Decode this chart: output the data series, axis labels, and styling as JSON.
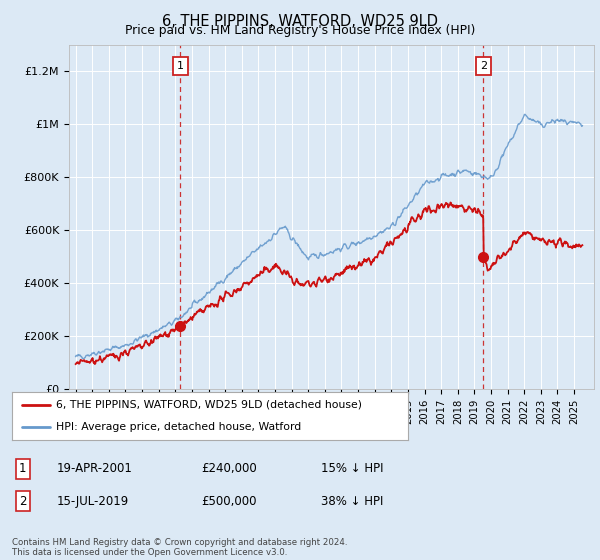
{
  "title": "6, THE PIPPINS, WATFORD, WD25 9LD",
  "subtitle": "Price paid vs. HM Land Registry's House Price Index (HPI)",
  "background_color": "#dce9f5",
  "plot_bg_color": "#dce9f5",
  "legend_line1": "6, THE PIPPINS, WATFORD, WD25 9LD (detached house)",
  "legend_line2": "HPI: Average price, detached house, Watford",
  "annotation1_date": "19-APR-2001",
  "annotation1_price": "£240,000",
  "annotation1_hpi": "15% ↓ HPI",
  "annotation2_date": "15-JUL-2019",
  "annotation2_price": "£500,000",
  "annotation2_hpi": "38% ↓ HPI",
  "footer": "Contains HM Land Registry data © Crown copyright and database right 2024.\nThis data is licensed under the Open Government Licence v3.0.",
  "sale1_year": 2001.3,
  "sale1_price": 240000,
  "sale2_year": 2019.54,
  "sale2_price": 500000,
  "ylim_min": 0,
  "ylim_max": 1300000,
  "hpi_color": "#6699cc",
  "price_color": "#cc1111",
  "sale_marker_color": "#cc1111",
  "vline_color": "#cc3333",
  "grid_color": "#ffffff",
  "yticks": [
    0,
    200000,
    400000,
    600000,
    800000,
    1000000,
    1200000
  ],
  "ytick_labels": [
    "£0",
    "£200K",
    "£400K",
    "£600K",
    "£800K",
    "£1M",
    "£1.2M"
  ]
}
